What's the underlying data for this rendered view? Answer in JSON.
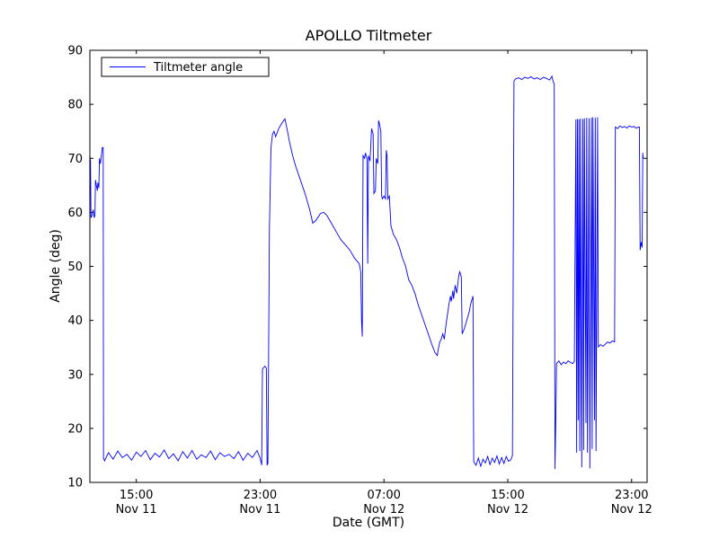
{
  "chart_data": {
    "type": "line",
    "title": "APOLLO Tiltmeter",
    "xlabel": "Date (GMT)",
    "ylabel": "Angle (deg)",
    "series_name": "Tiltmeter angle",
    "line_color": "#0000ff",
    "background_color": "#ffffff",
    "axis_color": "#000000",
    "grid": false,
    "legend_position": "upper left",
    "x_unit": "hours since Nov 11 12:00 GMT",
    "xlim": [
      0,
      36
    ],
    "ylim": [
      10,
      90
    ],
    "yticks": [
      10,
      20,
      30,
      40,
      50,
      60,
      70,
      80,
      90
    ],
    "xticks": [
      {
        "t": 3,
        "line1": "15:00",
        "line2": "Nov 11"
      },
      {
        "t": 11,
        "line1": "23:00",
        "line2": "Nov 11"
      },
      {
        "t": 19,
        "line1": "07:00",
        "line2": "Nov 12"
      },
      {
        "t": 27,
        "line1": "15:00",
        "line2": "Nov 12"
      },
      {
        "t": 35,
        "line1": "23:00",
        "line2": "Nov 12"
      }
    ],
    "points": [
      [
        0,
        70.5
      ],
      [
        0.04,
        69.5
      ],
      [
        0.07,
        59
      ],
      [
        0.15,
        59.5
      ],
      [
        0.22,
        60.5
      ],
      [
        0.28,
        59
      ],
      [
        0.33,
        59.5
      ],
      [
        0.36,
        66
      ],
      [
        0.42,
        65
      ],
      [
        0.48,
        64
      ],
      [
        0.52,
        65.5
      ],
      [
        0.58,
        64.5
      ],
      [
        0.62,
        70
      ],
      [
        0.68,
        69
      ],
      [
        0.74,
        70.5
      ],
      [
        0.8,
        72
      ],
      [
        0.86,
        72
      ],
      [
        0.88,
        14.5
      ],
      [
        0.95,
        14
      ],
      [
        1.2,
        15.5
      ],
      [
        1.5,
        14.3
      ],
      [
        1.8,
        15.8
      ],
      [
        2.1,
        14.6
      ],
      [
        2.4,
        15.2
      ],
      [
        2.7,
        14.1
      ],
      [
        3,
        15.6
      ],
      [
        3.3,
        14.8
      ],
      [
        3.6,
        15.9
      ],
      [
        3.9,
        14.2
      ],
      [
        4.2,
        15.4
      ],
      [
        4.5,
        14.7
      ],
      [
        4.8,
        16
      ],
      [
        5.1,
        14.4
      ],
      [
        5.4,
        15.3
      ],
      [
        5.7,
        14
      ],
      [
        6,
        15.7
      ],
      [
        6.3,
        14.5
      ],
      [
        6.6,
        15.9
      ],
      [
        6.9,
        14.3
      ],
      [
        7.2,
        15.1
      ],
      [
        7.5,
        14.6
      ],
      [
        7.8,
        15.8
      ],
      [
        8.1,
        14.2
      ],
      [
        8.4,
        15.5
      ],
      [
        8.7,
        14.8
      ],
      [
        9,
        15.2
      ],
      [
        9.3,
        14.4
      ],
      [
        9.6,
        15.7
      ],
      [
        9.9,
        14.1
      ],
      [
        10.2,
        15.4
      ],
      [
        10.5,
        14.6
      ],
      [
        10.8,
        15.9
      ],
      [
        11,
        14.5
      ],
      [
        11.1,
        13.2
      ],
      [
        11.15,
        31
      ],
      [
        11.3,
        31.5
      ],
      [
        11.4,
        31.2
      ],
      [
        11.45,
        13.2
      ],
      [
        11.5,
        13.5
      ],
      [
        11.6,
        57
      ],
      [
        11.7,
        72
      ],
      [
        11.8,
        74.5
      ],
      [
        11.9,
        75
      ],
      [
        12,
        74
      ],
      [
        12.2,
        75.5
      ],
      [
        12.4,
        76.5
      ],
      [
        12.6,
        77.3
      ],
      [
        12.7,
        76
      ],
      [
        12.9,
        73
      ],
      [
        13.1,
        70.5
      ],
      [
        13.3,
        68.5
      ],
      [
        13.6,
        66
      ],
      [
        13.9,
        63.5
      ],
      [
        14.2,
        60.5
      ],
      [
        14.4,
        58
      ],
      [
        14.6,
        58.5
      ],
      [
        14.9,
        59.8
      ],
      [
        15.1,
        60
      ],
      [
        15.3,
        59.5
      ],
      [
        15.6,
        58
      ],
      [
        15.9,
        56.5
      ],
      [
        16.2,
        55
      ],
      [
        16.5,
        54
      ],
      [
        16.8,
        53
      ],
      [
        17.1,
        51.5
      ],
      [
        17.4,
        50.5
      ],
      [
        17.5,
        49
      ],
      [
        17.55,
        40
      ],
      [
        17.6,
        37
      ],
      [
        17.65,
        70.5
      ],
      [
        17.75,
        70
      ],
      [
        17.8,
        71
      ],
      [
        17.9,
        70
      ],
      [
        17.95,
        50.5
      ],
      [
        18,
        70.5
      ],
      [
        18.1,
        69.5
      ],
      [
        18.2,
        75.5
      ],
      [
        18.3,
        74.5
      ],
      [
        18.35,
        63.5
      ],
      [
        18.45,
        64
      ],
      [
        18.5,
        70
      ],
      [
        18.6,
        69
      ],
      [
        18.65,
        77
      ],
      [
        18.7,
        76.5
      ],
      [
        18.8,
        75
      ],
      [
        18.85,
        63
      ],
      [
        18.9,
        62.5
      ],
      [
        19,
        63
      ],
      [
        19.1,
        62.5
      ],
      [
        19.15,
        71.5
      ],
      [
        19.2,
        70.5
      ],
      [
        19.25,
        62.5
      ],
      [
        19.35,
        63
      ],
      [
        19.45,
        57.5
      ],
      [
        19.6,
        56
      ],
      [
        19.8,
        55
      ],
      [
        20,
        53.5
      ],
      [
        20.2,
        51.5
      ],
      [
        20.4,
        50
      ],
      [
        20.6,
        47.5
      ],
      [
        20.8,
        46.5
      ],
      [
        21,
        45
      ],
      [
        21.2,
        43
      ],
      [
        21.5,
        40.5
      ],
      [
        21.8,
        38
      ],
      [
        22.1,
        35.5
      ],
      [
        22.3,
        34
      ],
      [
        22.45,
        33.5
      ],
      [
        22.5,
        34.5
      ],
      [
        22.6,
        36
      ],
      [
        22.7,
        36.5
      ],
      [
        22.8,
        37.5
      ],
      [
        22.9,
        36.5
      ],
      [
        23,
        39
      ],
      [
        23.1,
        41
      ],
      [
        23.2,
        43
      ],
      [
        23.3,
        44.5
      ],
      [
        23.35,
        43.5
      ],
      [
        23.45,
        45.5
      ],
      [
        23.5,
        44
      ],
      [
        23.6,
        46.5
      ],
      [
        23.7,
        45
      ],
      [
        23.8,
        47.5
      ],
      [
        23.85,
        48.5
      ],
      [
        23.9,
        49
      ],
      [
        24,
        48
      ],
      [
        24.05,
        37.5
      ],
      [
        24.2,
        38.5
      ],
      [
        24.35,
        40
      ],
      [
        24.5,
        41.5
      ],
      [
        24.6,
        43
      ],
      [
        24.7,
        44
      ],
      [
        24.75,
        44.5
      ],
      [
        24.8,
        13.8
      ],
      [
        24.95,
        13.2
      ],
      [
        25.1,
        14.5
      ],
      [
        25.25,
        13
      ],
      [
        25.4,
        14.3
      ],
      [
        25.55,
        13.6
      ],
      [
        25.7,
        14.8
      ],
      [
        25.85,
        13.3
      ],
      [
        26,
        14.5
      ],
      [
        26.15,
        13.7
      ],
      [
        26.3,
        14.9
      ],
      [
        26.45,
        13.4
      ],
      [
        26.6,
        14.6
      ],
      [
        26.75,
        13.5
      ],
      [
        26.9,
        14.8
      ],
      [
        27.05,
        13.9
      ],
      [
        27.2,
        14.2
      ],
      [
        27.3,
        15
      ],
      [
        27.4,
        84.3
      ],
      [
        27.5,
        84.7
      ],
      [
        27.7,
        84.9
      ],
      [
        27.9,
        84.6
      ],
      [
        28.1,
        85
      ],
      [
        28.3,
        84.8
      ],
      [
        28.5,
        85.1
      ],
      [
        28.7,
        84.7
      ],
      [
        28.9,
        84.9
      ],
      [
        29.1,
        84.6
      ],
      [
        29.3,
        85
      ],
      [
        29.5,
        84.8
      ],
      [
        29.7,
        84.5
      ],
      [
        29.85,
        85.2
      ],
      [
        29.95,
        84
      ],
      [
        30,
        83.8
      ],
      [
        30.05,
        12.5
      ],
      [
        30.1,
        21.5
      ],
      [
        30.15,
        32
      ],
      [
        30.3,
        32.5
      ],
      [
        30.45,
        31.8
      ],
      [
        30.6,
        32.3
      ],
      [
        30.75,
        32
      ],
      [
        30.9,
        32.5
      ],
      [
        31.05,
        32.2
      ],
      [
        31.2,
        32
      ],
      [
        31.3,
        32.4
      ],
      [
        31.4,
        77.2
      ],
      [
        31.45,
        15.5
      ],
      [
        31.5,
        77.3
      ],
      [
        31.55,
        21.5
      ],
      [
        31.6,
        77.2
      ],
      [
        31.65,
        15.8
      ],
      [
        31.7,
        77.4
      ],
      [
        31.78,
        12.8
      ],
      [
        31.85,
        77.3
      ],
      [
        31.9,
        16
      ],
      [
        31.95,
        77.4
      ],
      [
        32.05,
        21
      ],
      [
        32.1,
        77.5
      ],
      [
        32.15,
        15.5
      ],
      [
        32.25,
        77.4
      ],
      [
        32.3,
        12.6
      ],
      [
        32.4,
        77.5
      ],
      [
        32.45,
        16.2
      ],
      [
        32.5,
        77.6
      ],
      [
        32.6,
        21.5
      ],
      [
        32.65,
        77.5
      ],
      [
        32.7,
        15.8
      ],
      [
        32.8,
        77.6
      ],
      [
        32.85,
        35
      ],
      [
        32.9,
        35.3
      ],
      [
        33,
        35.5
      ],
      [
        33.15,
        35.2
      ],
      [
        33.3,
        35.6
      ],
      [
        33.45,
        36
      ],
      [
        33.6,
        35.8
      ],
      [
        33.75,
        36.2
      ],
      [
        33.9,
        36
      ],
      [
        33.95,
        75.8
      ],
      [
        34.1,
        75.5
      ],
      [
        34.25,
        76
      ],
      [
        34.4,
        75.7
      ],
      [
        34.55,
        75.9
      ],
      [
        34.7,
        75.6
      ],
      [
        34.85,
        76
      ],
      [
        35,
        75.8
      ],
      [
        35.15,
        75.9
      ],
      [
        35.3,
        75.6
      ],
      [
        35.45,
        75.8
      ],
      [
        35.5,
        75.8
      ],
      [
        35.55,
        53
      ],
      [
        35.62,
        54.5
      ],
      [
        35.68,
        53.5
      ],
      [
        35.72,
        71
      ],
      [
        35.75,
        70
      ]
    ]
  }
}
